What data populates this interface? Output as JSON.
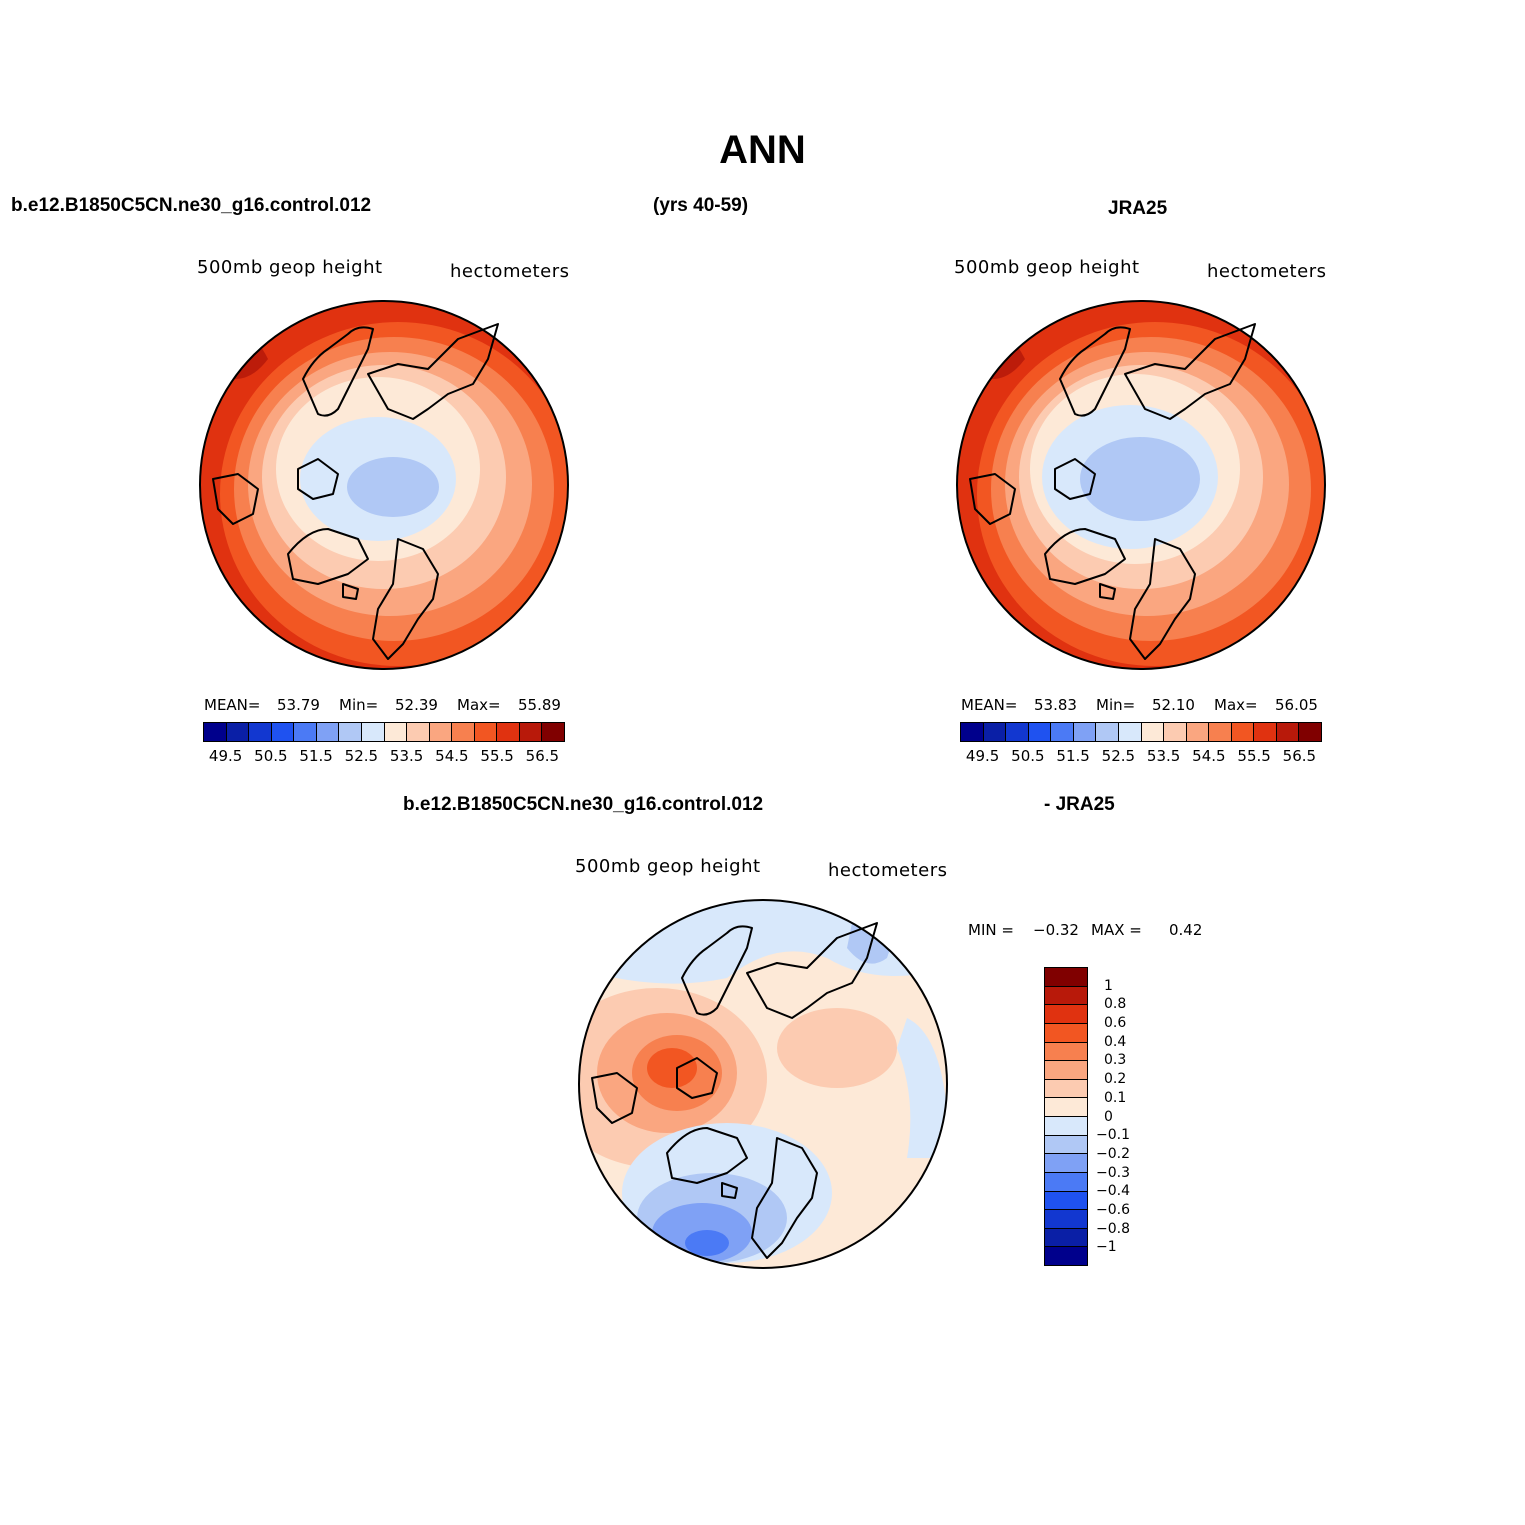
{
  "figure": {
    "title": "ANN",
    "case_name": "b.e12.B1850C5CN.ne30_g16.control.012",
    "years": "(yrs 40-59)",
    "obs_name": "JRA25",
    "diff_case_name": "b.e12.B1850C5CN.ne30_g16.control.012",
    "diff_obs_name": "- JRA25"
  },
  "panels": {
    "model": {
      "variable": "500mb geop height",
      "units": "hectometers",
      "mean_label": "MEAN=",
      "mean": "53.79",
      "min_label": "Min=",
      "min": "52.39",
      "max_label": "Max=",
      "max": "55.89"
    },
    "obs": {
      "variable": "500mb geop height",
      "units": "hectometers",
      "mean_label": "MEAN=",
      "mean": "53.83",
      "min_label": "Min=",
      "min": "52.10",
      "max_label": "Max=",
      "max": "56.05"
    },
    "diff": {
      "variable": "500mb geop height",
      "units": "hectometers",
      "min_label": "MIN =",
      "min": "−0.32",
      "max_label": "MAX =",
      "max": "0.42"
    }
  },
  "colorbars": {
    "field": {
      "colors": [
        "#00008c",
        "#0a1fa6",
        "#1237d0",
        "#1f52f0",
        "#4b7af5",
        "#7fa1f5",
        "#b0c8f5",
        "#d8e8fb",
        "#fde9d7",
        "#fccbb1",
        "#faa680",
        "#f7804f",
        "#f25622",
        "#e03210",
        "#b8190a",
        "#800000"
      ],
      "tick_labels": [
        "49.5",
        "50.5",
        "51.5",
        "52.5",
        "53.5",
        "54.5",
        "55.5",
        "56.5"
      ]
    },
    "diff": {
      "colors": [
        "#800000",
        "#b8190a",
        "#e03210",
        "#f25622",
        "#f7804f",
        "#faa680",
        "#fccbb1",
        "#fde9d7",
        "#d8e8fb",
        "#b0c8f5",
        "#7fa1f5",
        "#4b7af5",
        "#1f52f0",
        "#1237d0",
        "#0a1fa6",
        "#00008c"
      ],
      "tick_labels": [
        "1",
        "0.8",
        "0.6",
        "0.4",
        "0.3",
        "0.2",
        "0.1",
        "0",
        "−0.1",
        "−0.2",
        "−0.3",
        "−0.4",
        "−0.6",
        "−0.8",
        "−1"
      ]
    }
  },
  "map_colors": {
    "land_outline": "#000000",
    "field_band_outer": "#e03210",
    "field_band_mid": "#f7804f",
    "field_band_inner": "#fccbb1",
    "field_polar": "#b0c8f5",
    "diff_positive": "#f7804f",
    "diff_negative": "#4b7af5",
    "diff_neutral": "#fde9d7"
  }
}
